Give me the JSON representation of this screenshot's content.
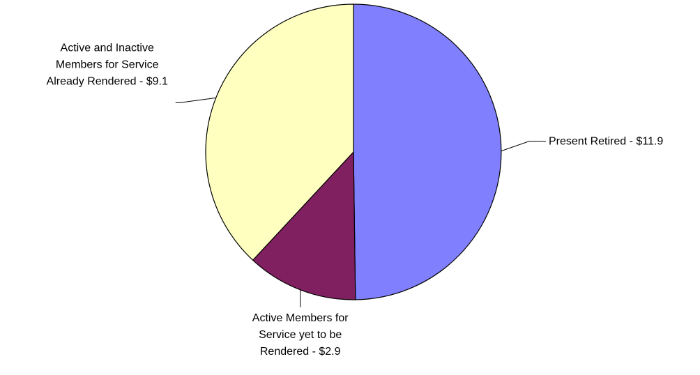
{
  "chart_data": {
    "type": "pie",
    "title": "",
    "start_angle_deg": 0,
    "direction": "clockwise",
    "slices": [
      {
        "label_lines": [
          "Present Retired - $11.9"
        ],
        "value": 11.9,
        "color": "#8080FF"
      },
      {
        "label_lines": [
          "Active Members for",
          "Service yet to be",
          "Rendered - $2.9"
        ],
        "value": 2.9,
        "color": "#802060"
      },
      {
        "label_lines": [
          "Active and Inactive",
          "Members for Service",
          "Already Rendered - $9.1"
        ],
        "value": 9.1,
        "color": "#FFFFC0"
      }
    ]
  }
}
